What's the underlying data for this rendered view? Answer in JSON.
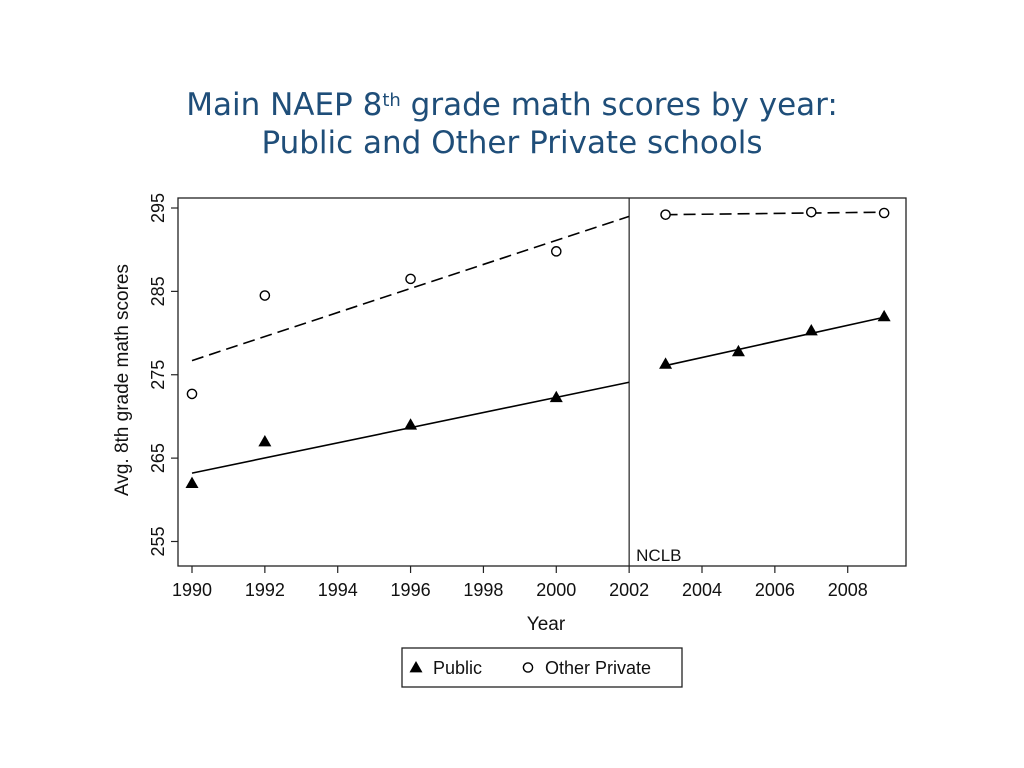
{
  "title": {
    "line1_pre": "Main NAEP 8",
    "line1_sup": "th",
    "line1_post": " grade math scores by year:",
    "line2": "Public and Other Private schools"
  },
  "chart_data": {
    "type": "scatter",
    "xlabel": "Year",
    "ylabel": "Avg. 8th grade math scores",
    "xlim": [
      1990,
      2009
    ],
    "ylim": [
      255,
      295
    ],
    "xticks": [
      1990,
      1992,
      1994,
      1996,
      1998,
      2000,
      2002,
      2004,
      2006,
      2008
    ],
    "yticks": [
      255,
      265,
      275,
      285,
      295
    ],
    "grid": false,
    "legend_position": "bottom-center",
    "annotations": [
      {
        "type": "vline",
        "x": 2002,
        "label": "NCLB"
      }
    ],
    "series": [
      {
        "name": "Public",
        "marker": "filled-triangle",
        "color": "#000000",
        "x": [
          1990,
          1992,
          1996,
          2000,
          2003,
          2005,
          2007,
          2009
        ],
        "y": [
          262,
          267,
          269,
          272.3,
          276.3,
          277.8,
          280.3,
          282
        ],
        "fit": [
          {
            "x": [
              1990,
              2002
            ],
            "y": [
              263.2,
              274.1
            ],
            "style": "solid"
          },
          {
            "x": [
              2003,
              2009
            ],
            "y": [
              276.1,
              281.9
            ],
            "style": "solid"
          }
        ]
      },
      {
        "name": "Other Private",
        "marker": "hollow-circle",
        "color": "#000000",
        "x": [
          1990,
          1992,
          1996,
          2000,
          2003,
          2007,
          2009
        ],
        "y": [
          272.7,
          284.5,
          286.5,
          289.8,
          294.2,
          294.5,
          294.4
        ],
        "fit": [
          {
            "x": [
              1990,
              2002
            ],
            "y": [
              276.7,
              294.0
            ],
            "style": "dashed"
          },
          {
            "x": [
              2003,
              2009
            ],
            "y": [
              294.2,
              294.5
            ],
            "style": "dashed"
          }
        ]
      }
    ]
  }
}
